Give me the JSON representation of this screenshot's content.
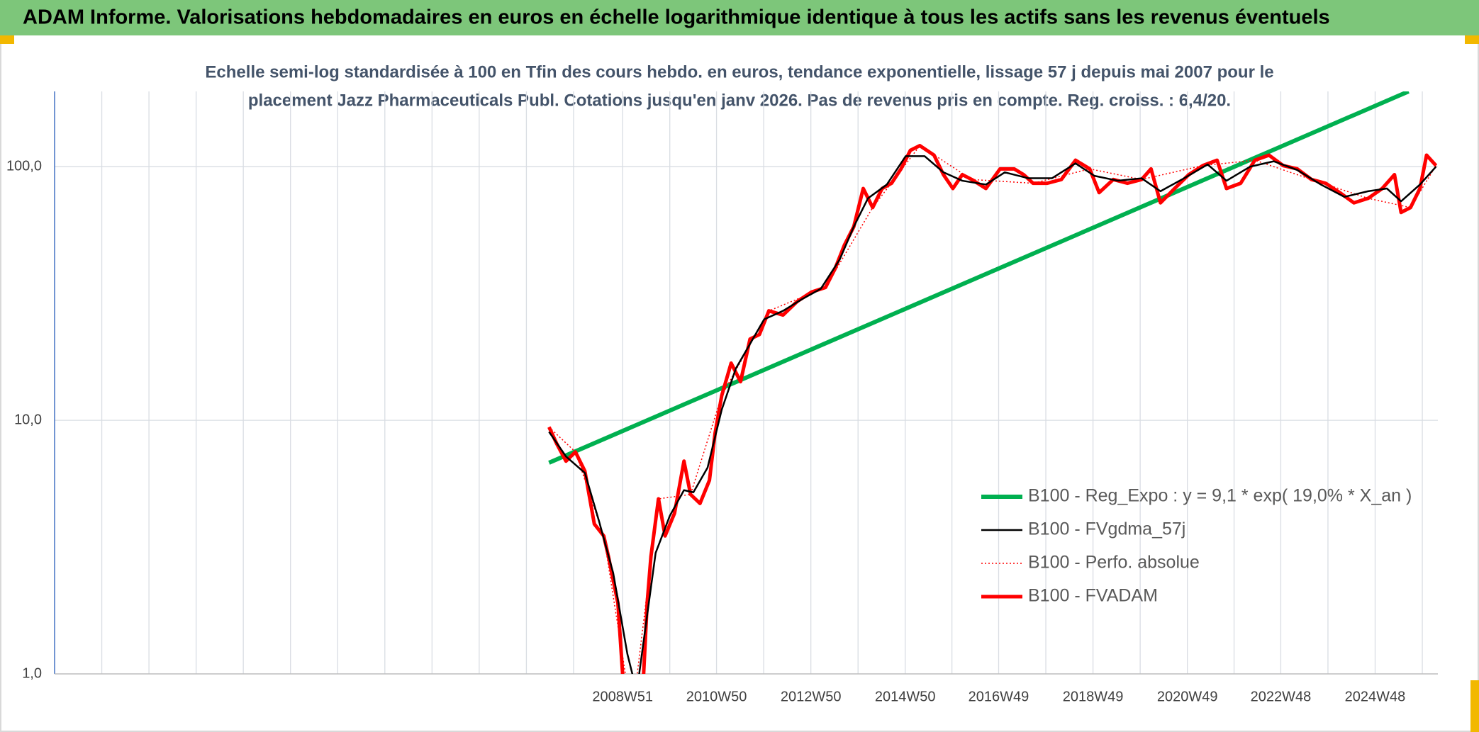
{
  "chart_data": {
    "type": "line",
    "title": "ADAM Informe. Valorisations hebdomadaires en euros en échelle logarithmique identique à tous les actifs sans les revenus éventuels",
    "subtitle": [
      "Echelle semi-log standardisée à 100 en Tfin des cours hebdo. en euros, tendance exponentielle, lissage 57 j depuis mai 2007 pour le",
      "placement Jazz Pharmaceuticals Publ. Cotations jusqu'en janv 2026. Pas de revenus pris en compte. Reg. croiss. : 6,4/20."
    ],
    "log_y": true,
    "grid": true,
    "legend": "bottom-right",
    "xlim": [
      1996.93,
      2026.25
    ],
    "xticks": [
      {
        "value": 2008.97,
        "label": "2008W51"
      },
      {
        "value": 2010.96,
        "label": "2010W50"
      },
      {
        "value": 2012.96,
        "label": "2012W50"
      },
      {
        "value": 2014.96,
        "label": "2014W50"
      },
      {
        "value": 2016.94,
        "label": "2016W49"
      },
      {
        "value": 2018.94,
        "label": "2018W49"
      },
      {
        "value": 2020.94,
        "label": "2020W49"
      },
      {
        "value": 2022.92,
        "label": "2022W48"
      },
      {
        "value": 2024.92,
        "label": "2024W48"
      }
    ],
    "x_minor_ticks": [
      1997.93,
      1998.93,
      1999.93,
      2000.93,
      2001.93,
      2002.93,
      2003.93,
      2004.93,
      2005.93,
      2006.93,
      2007.93,
      2009.97,
      2011.96,
      2013.96,
      2015.95,
      2017.94,
      2019.94,
      2021.93,
      2023.92,
      2025.92
    ],
    "ylim": [
      1,
      198
    ],
    "yticks": [
      {
        "value": 1,
        "label": "1,0"
      },
      {
        "value": 10,
        "label": "10,0"
      },
      {
        "value": 100,
        "label": "100,0"
      }
    ],
    "series": [
      {
        "name": "B100 - Reg_Expo : y = 9,1 * exp( 19,0% *  X_an )",
        "color": "#00b050",
        "width": 6,
        "dash": "none",
        "x": [
          2007.41,
          2025.63
        ],
        "values": [
          6.8,
          198
        ]
      },
      {
        "name": "B100 - FVgdma_57j",
        "color": "#000000",
        "width": 2.5,
        "dash": "none",
        "x": [
          2007.41,
          2007.77,
          2008.17,
          2008.47,
          2008.77,
          2009.07,
          2009.27,
          2009.47,
          2009.67,
          2009.97,
          2010.27,
          2010.47,
          2010.77,
          2011.07,
          2011.37,
          2011.67,
          2011.97,
          2012.37,
          2012.77,
          2013.17,
          2013.57,
          2013.87,
          2014.17,
          2014.57,
          2014.97,
          2015.37,
          2015.77,
          2016.17,
          2016.67,
          2017.07,
          2017.57,
          2018.07,
          2018.57,
          2018.97,
          2019.47,
          2019.97,
          2020.37,
          2020.87,
          2021.37,
          2021.77,
          2022.27,
          2022.77,
          2023.27,
          2023.77,
          2024.27,
          2024.77,
          2025.17,
          2025.47,
          2025.87,
          2026.21
        ],
        "values": [
          9.0,
          7.2,
          6.2,
          4.0,
          2.5,
          1.2,
          0.85,
          1.6,
          3.0,
          4.2,
          5.3,
          5.2,
          6.5,
          11,
          16,
          20,
          25,
          27,
          30,
          33,
          43,
          58,
          75,
          85,
          110,
          110,
          95,
          88,
          85,
          95,
          90,
          90,
          103,
          92,
          88,
          90,
          80,
          90,
          102,
          88,
          100,
          105,
          97,
          85,
          76,
          80,
          82,
          73,
          85,
          100
        ]
      },
      {
        "name": "B100 - Perfo. absolue",
        "color": "#ff0000",
        "width": 1.5,
        "dash": "2,3",
        "x": [
          2007.41,
          2007.97,
          2008.57,
          2009.17,
          2009.73,
          2010.41,
          2011.07,
          2012.07,
          2013.27,
          2014.27,
          2015.27,
          2016.37,
          2017.67,
          2018.87,
          2019.97,
          2021.27,
          2022.37,
          2023.57,
          2024.77,
          2025.67,
          2026.21
        ],
        "values": [
          9.4,
          7.5,
          3.5,
          0.68,
          4.9,
          5.1,
          12.5,
          27,
          33.4,
          69,
          121,
          89,
          86,
          98,
          89,
          101,
          106,
          89,
          75,
          69,
          101
        ]
      },
      {
        "name": "B100 - FVADAM",
        "color": "#ff0000",
        "width": 5,
        "dash": "none",
        "x": [
          2007.41,
          2007.57,
          2007.77,
          2007.97,
          2008.17,
          2008.37,
          2008.57,
          2008.67,
          2008.87,
          2008.97,
          2009.17,
          2009.37,
          2009.49,
          2009.57,
          2009.73,
          2009.87,
          2010.07,
          2010.27,
          2010.41,
          2010.61,
          2010.81,
          2010.93,
          2011.07,
          2011.27,
          2011.47,
          2011.67,
          2011.87,
          2012.07,
          2012.37,
          2012.67,
          2012.97,
          2013.27,
          2013.47,
          2013.67,
          2013.87,
          2014.07,
          2014.27,
          2014.47,
          2014.67,
          2014.87,
          2015.07,
          2015.27,
          2015.57,
          2015.77,
          2015.97,
          2016.17,
          2016.37,
          2016.67,
          2016.97,
          2017.27,
          2017.47,
          2017.67,
          2017.97,
          2018.27,
          2018.57,
          2018.87,
          2019.07,
          2019.37,
          2019.67,
          2019.97,
          2020.17,
          2020.37,
          2020.67,
          2020.97,
          2021.27,
          2021.57,
          2021.77,
          2022.07,
          2022.37,
          2022.67,
          2022.97,
          2023.27,
          2023.57,
          2023.87,
          2024.17,
          2024.47,
          2024.77,
          2025.07,
          2025.33,
          2025.47,
          2025.67,
          2025.87,
          2026.01,
          2026.21
        ],
        "values": [
          9.4,
          8.1,
          6.9,
          7.5,
          6.3,
          3.9,
          3.5,
          2.9,
          1.9,
          1.0,
          0.68,
          0.68,
          1.9,
          2.9,
          4.9,
          3.5,
          4.3,
          6.9,
          5.1,
          4.7,
          5.8,
          8.9,
          12.5,
          16.8,
          14.2,
          20.9,
          21.8,
          27,
          26,
          29.4,
          32,
          33.4,
          39.5,
          49,
          58,
          82,
          69,
          82,
          86,
          98,
          116,
          121,
          111,
          93,
          82,
          93,
          89,
          82,
          98,
          98,
          93,
          86,
          86,
          89,
          106,
          98,
          79,
          89,
          86,
          89,
          98,
          72,
          82,
          93,
          101,
          106,
          82,
          86,
          106,
          111,
          101,
          98,
          89,
          86,
          79,
          72,
          75,
          82,
          93,
          66,
          69,
          82,
          111,
          101
        ]
      }
    ]
  }
}
